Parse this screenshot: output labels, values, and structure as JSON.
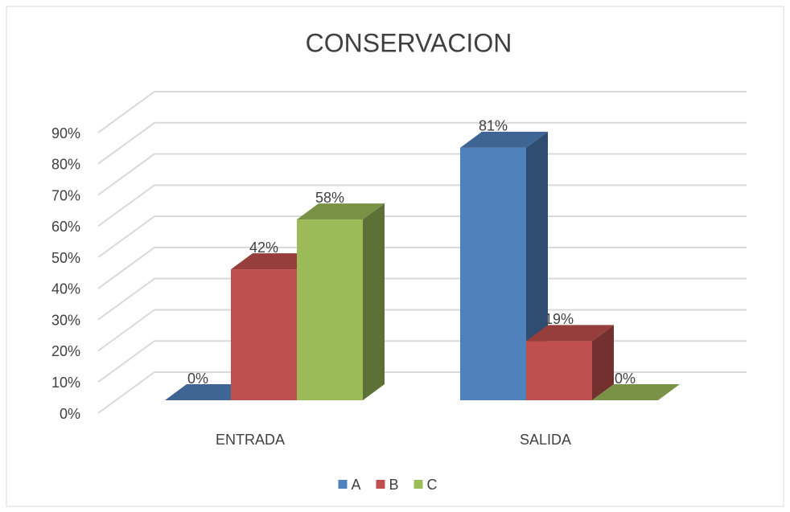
{
  "chart_data": {
    "type": "bar3d",
    "title": "CONSERVACION",
    "categories": [
      "ENTRADA",
      "SALIDA"
    ],
    "series": [
      {
        "name": "A",
        "color": "#4f81bd",
        "values": [
          0,
          81
        ],
        "value_labels": [
          "0%",
          "81%"
        ]
      },
      {
        "name": "B",
        "color": "#c0504d",
        "values": [
          42,
          19
        ],
        "value_labels": [
          "42%",
          "19%"
        ]
      },
      {
        "name": "C",
        "color": "#9bbb59",
        "values": [
          58,
          0
        ],
        "value_labels": [
          "58%",
          "0%"
        ]
      }
    ],
    "ylim": [
      0,
      90
    ],
    "yticks": [
      {
        "value": 0,
        "label": "0%"
      },
      {
        "value": 10,
        "label": "10%"
      },
      {
        "value": 20,
        "label": "20%"
      },
      {
        "value": 30,
        "label": "30%"
      },
      {
        "value": 40,
        "label": "40%"
      },
      {
        "value": 50,
        "label": "50%"
      },
      {
        "value": 60,
        "label": "60%"
      },
      {
        "value": 70,
        "label": "70%"
      },
      {
        "value": 80,
        "label": "80%"
      },
      {
        "value": 90,
        "label": "90%"
      }
    ],
    "grid": true,
    "legend": "bottom"
  }
}
